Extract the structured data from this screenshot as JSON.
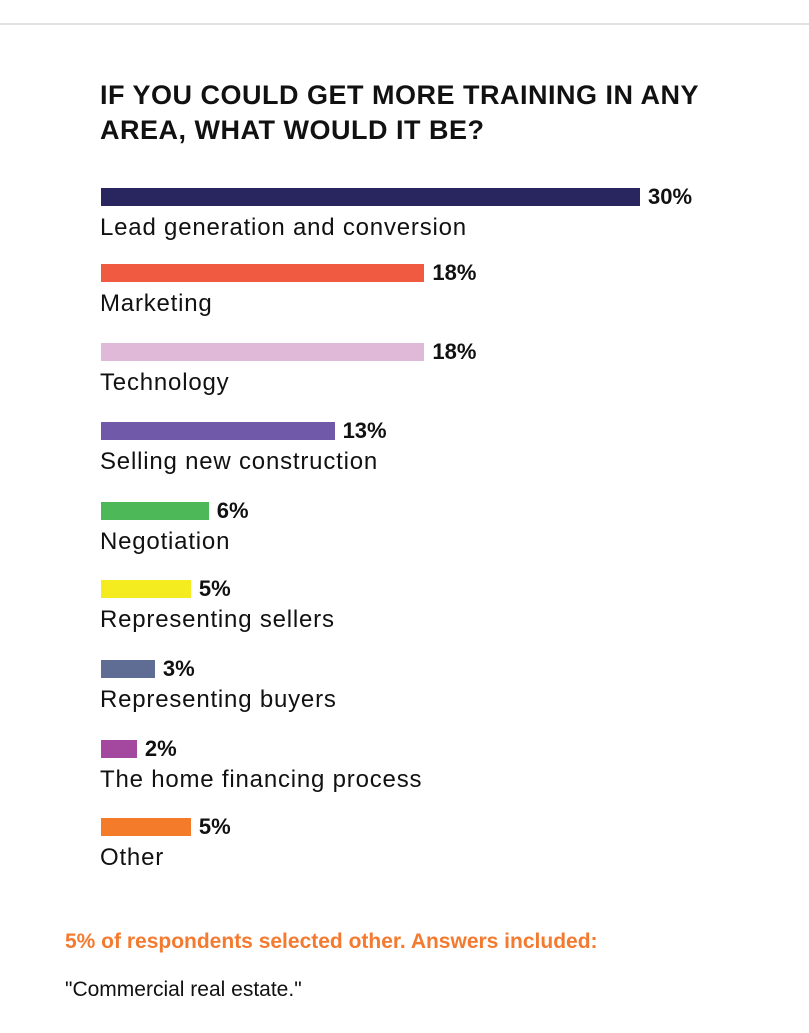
{
  "chart_data": {
    "type": "bar",
    "orientation": "horizontal",
    "title": "IF YOU COULD GET MORE TRAINING IN ANY AREA, WHAT WOULD IT BE?",
    "categories": [
      "Lead generation and conversion",
      "Marketing",
      "Technology",
      "Selling new construction",
      "Negotiation",
      "Representing sellers",
      "Representing buyers",
      "The home financing process",
      "Other"
    ],
    "values": [
      30,
      18,
      18,
      13,
      6,
      5,
      3,
      2,
      5
    ],
    "value_labels": [
      "30%",
      "18%",
      "18%",
      "13%",
      "6%",
      "5%",
      "3%",
      "2%",
      "5%"
    ],
    "colors": [
      "#29265f",
      "#f05a40",
      "#e0b8d8",
      "#7059a8",
      "#4cb857",
      "#f4ec1f",
      "#5f6c94",
      "#a3489e",
      "#f47b2a"
    ],
    "xlim": [
      0,
      30
    ],
    "grid": false,
    "xlabel": "",
    "ylabel": ""
  },
  "footer": {
    "note": "5% of respondents selected other. Answers included:",
    "quote": "\"Commercial real estate.\""
  }
}
